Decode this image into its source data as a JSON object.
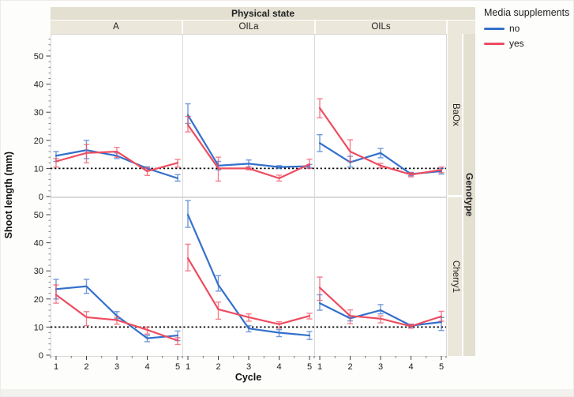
{
  "legend": {
    "title": "Media supplements",
    "items": [
      {
        "label": "no",
        "color": "#3470CB"
      },
      {
        "label": "yes",
        "color": "#EE4C60"
      }
    ]
  },
  "facets": {
    "col_header": "Physical state",
    "cols": [
      "A",
      "OILa",
      "OILs"
    ],
    "row_header": "Genotype",
    "rows": [
      "BaOx",
      "Cherry1"
    ]
  },
  "axes": {
    "y_label": "Shoot length (mm)",
    "x_label": "Cycle"
  },
  "chart_data": {
    "type": "line",
    "x": [
      1,
      2,
      3,
      4,
      5
    ],
    "xlabel": "Cycle",
    "ylabel": "Shoot length (mm)",
    "ylim": [
      0,
      57
    ],
    "y_major_ticks": [
      0,
      10,
      20,
      30,
      40,
      50
    ],
    "y_minor_step": 2,
    "x_ticks": [
      1,
      2,
      3,
      4,
      5
    ],
    "reference_line_y": 10,
    "grid": "off",
    "legend_position": "top-right",
    "facet_cols_label": "Physical state",
    "facet_cols": [
      "A",
      "OILa",
      "OILs"
    ],
    "facet_rows_label": "Genotype",
    "facet_rows": [
      "BaOx",
      "Cherry1"
    ],
    "series_colors": {
      "no": "#3470CB",
      "yes": "#EE4C60"
    },
    "panels": [
      {
        "row": "BaOx",
        "col": "A",
        "series": [
          {
            "name": "no",
            "values": [
              14.5,
              16.5,
              14.5,
              10,
              6.5
            ],
            "err_lo": [
              12.5,
              13.5,
              13.5,
              9.3,
              5.5
            ],
            "err_hi": [
              16,
              20,
              15.5,
              10.6,
              7.8
            ]
          },
          {
            "name": "yes",
            "values": [
              12.5,
              15.5,
              16,
              9,
              12
            ],
            "err_lo": [
              10.5,
              12,
              14,
              7.5,
              10.5
            ],
            "err_hi": [
              13.5,
              18.5,
              17.5,
              10.2,
              13.2
            ]
          }
        ]
      },
      {
        "row": "BaOx",
        "col": "OILa",
        "series": [
          {
            "name": "no",
            "values": [
              29,
              11,
              11.7,
              10.5,
              10.8
            ],
            "err_lo": [
              26,
              9.5,
              10.5,
              10,
              10.2
            ],
            "err_hi": [
              33,
              12.5,
              13,
              11,
              11.4
            ]
          },
          {
            "name": "yes",
            "values": [
              25.5,
              10,
              10,
              6.5,
              11.5
            ],
            "err_lo": [
              23,
              5.5,
              9.5,
              5.5,
              10
            ],
            "err_hi": [
              28.5,
              14,
              10.5,
              7.6,
              13.3
            ]
          }
        ]
      },
      {
        "row": "BaOx",
        "col": "OILs",
        "series": [
          {
            "name": "no",
            "values": [
              19,
              12.2,
              15.5,
              8,
              9
            ],
            "err_lo": [
              16,
              10.5,
              13.8,
              7.4,
              8
            ],
            "err_hi": [
              22,
              14.3,
              17.1,
              8.6,
              10
            ]
          },
          {
            "name": "yes",
            "values": [
              31.5,
              16,
              11,
              7.8,
              9.5
            ],
            "err_lo": [
              28,
              12.5,
              10.2,
              7,
              8.5
            ],
            "err_hi": [
              34.8,
              20.2,
              11.8,
              8.5,
              10.5
            ]
          }
        ]
      },
      {
        "row": "Cherry1",
        "col": "A",
        "series": [
          {
            "name": "no",
            "values": [
              23.5,
              24.5,
              14,
              6,
              7
            ],
            "err_lo": [
              20,
              22,
              13,
              4.8,
              5.2
            ],
            "err_hi": [
              27,
              27,
              15.5,
              7,
              8.6
            ]
          },
          {
            "name": "yes",
            "values": [
              21.5,
              13.5,
              12.5,
              9,
              5.2
            ],
            "err_lo": [
              18.5,
              10.5,
              11,
              7.5,
              3.8
            ],
            "err_hi": [
              25,
              15.5,
              13.5,
              10,
              6.2
            ]
          }
        ]
      },
      {
        "row": "Cherry1",
        "col": "OILa",
        "series": [
          {
            "name": "no",
            "values": [
              50,
              25,
              9.5,
              8,
              7
            ],
            "err_lo": [
              45.5,
              22.8,
              8.3,
              6.6,
              5.6
            ],
            "err_hi": [
              55,
              28.3,
              10.5,
              9.1,
              8.4
            ]
          },
          {
            "name": "yes",
            "values": [
              34.5,
              16.3,
              13.5,
              11,
              14
            ],
            "err_lo": [
              30,
              12.8,
              12.1,
              9.6,
              12.9
            ],
            "err_hi": [
              39.5,
              18.9,
              14.7,
              11.9,
              14.9
            ]
          }
        ]
      },
      {
        "row": "Cherry1",
        "col": "OILs",
        "series": [
          {
            "name": "no",
            "values": [
              18.5,
              13.1,
              16,
              10.5,
              11.8
            ],
            "err_lo": [
              16,
              12.2,
              14.7,
              10,
              8.8
            ],
            "err_hi": [
              21.5,
              14,
              18,
              11,
              13.4
            ]
          },
          {
            "name": "yes",
            "values": [
              24,
              14,
              13,
              10.3,
              13.8
            ],
            "err_lo": [
              19.5,
              11.2,
              11.5,
              9.6,
              12.1
            ],
            "err_hi": [
              27.8,
              16.1,
              14,
              11,
              15.6
            ]
          }
        ]
      }
    ]
  }
}
